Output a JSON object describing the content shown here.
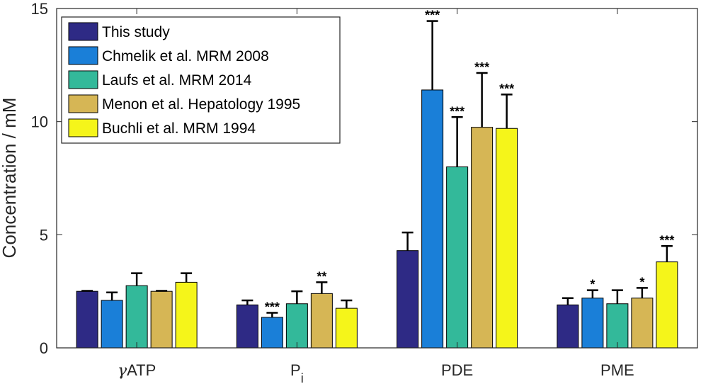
{
  "chart_data": {
    "type": "bar",
    "ylabel": "Concentration / mM",
    "ylim": [
      0,
      15
    ],
    "yticks": [
      0,
      5,
      10,
      15
    ],
    "categories": [
      {
        "label": "γATP",
        "main": "",
        "sub": ""
      },
      {
        "label": "Pi",
        "main": "P",
        "sub": "i"
      },
      {
        "label": "PDE",
        "main": "PDE",
        "sub": ""
      },
      {
        "label": "PME",
        "main": "PME",
        "sub": ""
      }
    ],
    "gamma": {
      "symbol": "γ",
      "text": "ATP"
    },
    "series": [
      {
        "name": "This study",
        "color": "#2e2a85",
        "values": [
          2.5,
          1.9,
          4.3,
          1.9
        ],
        "errors": [
          0.02,
          0.2,
          0.8,
          0.3
        ],
        "sig": [
          "",
          "",
          "",
          ""
        ]
      },
      {
        "name": "Chmelik et al. MRM 2008",
        "color": "#1a7fd8",
        "values": [
          2.1,
          1.35,
          11.4,
          2.2
        ],
        "errors": [
          0.35,
          0.2,
          3.05,
          0.35
        ],
        "sig": [
          "",
          "***",
          "***",
          "*"
        ]
      },
      {
        "name": "Laufs et al. MRM 2014",
        "color": "#33b99a",
        "values": [
          2.75,
          1.95,
          8.0,
          1.95
        ],
        "errors": [
          0.55,
          0.55,
          2.2,
          0.6
        ],
        "sig": [
          "",
          "",
          "***",
          ""
        ]
      },
      {
        "name": "Menon et al. Hepatology 1995",
        "color": "#d6b655",
        "values": [
          2.5,
          2.4,
          9.75,
          2.2
        ],
        "errors": [
          0.02,
          0.5,
          2.4,
          0.45
        ],
        "sig": [
          "",
          "**",
          "***",
          "*"
        ]
      },
      {
        "name": "Buchli et al. MRM 1994",
        "color": "#f5f51a",
        "values": [
          2.9,
          1.75,
          9.7,
          3.8
        ],
        "errors": [
          0.4,
          0.35,
          1.5,
          0.7
        ],
        "sig": [
          "",
          "",
          "***",
          "***"
        ]
      }
    ],
    "legend": {
      "position": "top-left"
    },
    "grid": false
  }
}
